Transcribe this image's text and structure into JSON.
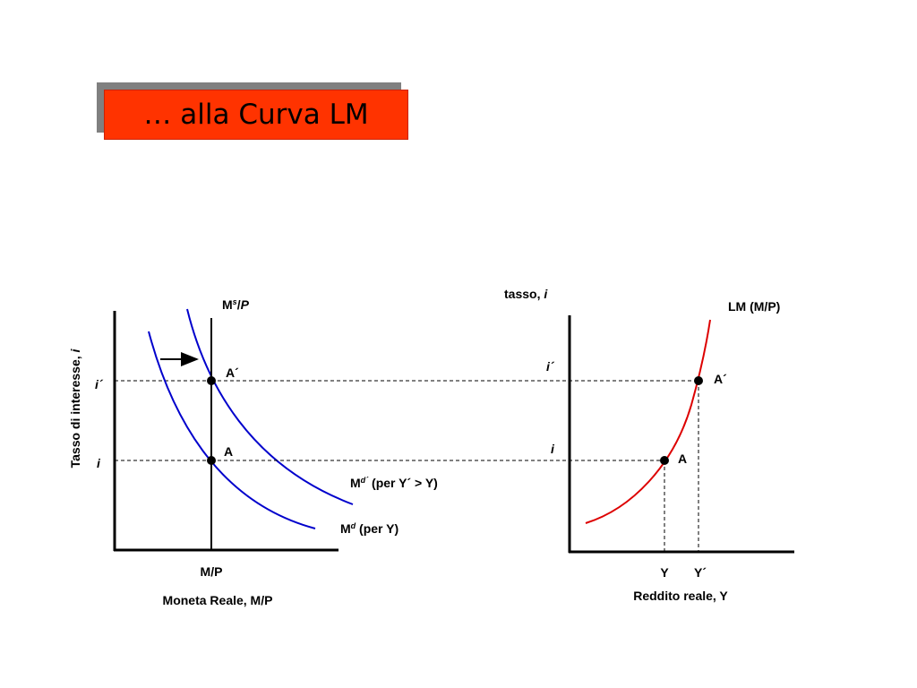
{
  "title": "… alla Curva LM",
  "colors": {
    "title_bg": "#ff3300",
    "money_demand": "#0000cc",
    "lm_curve": "#dd0000"
  },
  "left_panel": {
    "y_axis_label": "Tasso di interesse, i",
    "x_axis_label": "Moneta Reale, M/P",
    "supply_label": "Ms/P",
    "x_tick": "M/P",
    "rate_high": "i´",
    "rate_low": "i",
    "point_high": "A´",
    "point_low": "A",
    "demand_high_label": "Md´ (per Y´ > Y)",
    "demand_low_label": "Md (per Y)"
  },
  "right_panel": {
    "y_axis_label": "tasso, i",
    "x_axis_label": "Reddito reale, Y",
    "curve_label": "LM (M/P)",
    "rate_high": "i´",
    "rate_low": "i",
    "point_high": "A´",
    "point_low": "A",
    "x_tick_low": "Y",
    "x_tick_high": "Y´"
  },
  "chart_data": {
    "type": "diagram",
    "panels": [
      {
        "xlabel": "Moneta Reale, M/P",
        "ylabel": "Tasso di interesse, i",
        "series": [
          {
            "name": "Md (per Y)"
          },
          {
            "name": "Md´ (per Y´ > Y)"
          },
          {
            "name": "Ms/P"
          }
        ],
        "points": [
          "A",
          "A´"
        ]
      },
      {
        "xlabel": "Reddito reale, Y",
        "ylabel": "tasso, i",
        "series": [
          {
            "name": "LM (M/P)"
          }
        ],
        "points": [
          "A",
          "A´"
        ]
      }
    ]
  }
}
